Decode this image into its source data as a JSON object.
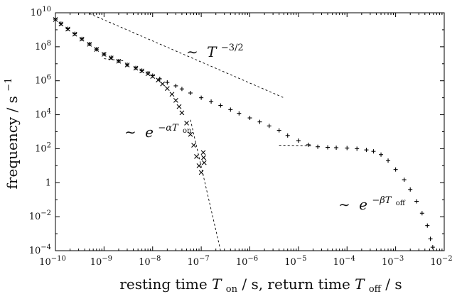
{
  "chart_data": {
    "type": "scatter",
    "xscale": "log",
    "yscale": "log",
    "xlim": [
      1e-10,
      0.01
    ],
    "ylim": [
      0.0001,
      10000000000.0
    ],
    "grid": false,
    "xlabel": "resting time T_on / s, return time T_off / s",
    "ylabel": "frequency / s^-1",
    "x_ticks": [
      {
        "value": 1e-10,
        "base": "10",
        "exp": "−10"
      },
      {
        "value": 1e-09,
        "base": "10",
        "exp": "−9"
      },
      {
        "value": 1e-08,
        "base": "10",
        "exp": "−8"
      },
      {
        "value": 1e-07,
        "base": "10",
        "exp": "−7"
      },
      {
        "value": 1e-06,
        "base": "10",
        "exp": "−6"
      },
      {
        "value": 1e-05,
        "base": "10",
        "exp": "−5"
      },
      {
        "value": 0.0001,
        "base": "10",
        "exp": "−4"
      },
      {
        "value": 0.001,
        "base": "10",
        "exp": "−3"
      },
      {
        "value": 0.01,
        "base": "10",
        "exp": "−2"
      }
    ],
    "y_ticks": [
      {
        "value": 0.0001,
        "base": "10",
        "exp": "−4"
      },
      {
        "value": 0.01,
        "base": "10",
        "exp": "−2"
      },
      {
        "value": 1,
        "base": "1",
        "exp": ""
      },
      {
        "value": 100.0,
        "base": "10",
        "exp": "2"
      },
      {
        "value": 10000.0,
        "base": "10",
        "exp": "4"
      },
      {
        "value": 1000000.0,
        "base": "10",
        "exp": "6"
      },
      {
        "value": 100000000.0,
        "base": "10",
        "exp": "8"
      },
      {
        "value": 10000000000.0,
        "base": "10",
        "exp": "10"
      }
    ],
    "series": [
      {
        "marker": "x",
        "points": [
          [
            1e-10,
            4000000000.0
          ],
          [
            1.3e-10,
            2200000000.0
          ],
          [
            1.8e-10,
            1100000000.0
          ],
          [
            2.5e-10,
            550000000.0
          ],
          [
            3.5e-10,
            280000000.0
          ],
          [
            5e-10,
            140000000.0
          ],
          [
            7e-10,
            70000000.0
          ],
          [
            1e-09,
            36000000.0
          ],
          [
            1.4e-09,
            22000000.0
          ],
          [
            2e-09,
            14000000.0
          ],
          [
            3e-09,
            8500000.0
          ],
          [
            4.5e-09,
            5500000.0
          ],
          [
            6e-09,
            3800000.0
          ],
          [
            8e-09,
            2600000.0
          ],
          [
            1e-08,
            1800000.0
          ],
          [
            1.3e-08,
            1100000.0
          ],
          [
            1.6e-08,
            650000.0
          ],
          [
            2e-08,
            350000.0
          ],
          [
            2.5e-08,
            160000.0
          ],
          [
            3e-08,
            70000.0
          ],
          [
            3.5e-08,
            30000.0
          ],
          [
            4e-08,
            13000.0
          ],
          [
            5e-08,
            3200.0
          ],
          [
            6e-08,
            700.0
          ],
          [
            7e-08,
            160.0
          ],
          [
            8e-08,
            35.0
          ],
          [
            9e-08,
            10.0
          ],
          [
            1e-07,
            4.0
          ],
          [
            1.1e-07,
            60.0
          ],
          [
            1.12e-07,
            30.0
          ],
          [
            1.15e-07,
            15.0
          ]
        ]
      },
      {
        "marker": "+",
        "points": [
          [
            1e-10,
            4200000000.0
          ],
          [
            1.3e-10,
            2300000000.0
          ],
          [
            1.8e-10,
            1150000000.0
          ],
          [
            2.5e-10,
            580000000.0
          ],
          [
            3.5e-10,
            290000000.0
          ],
          [
            5e-10,
            145000000.0
          ],
          [
            7e-10,
            72000000.0
          ],
          [
            1e-09,
            37000000.0
          ],
          [
            1.4e-09,
            23000000.0
          ],
          [
            2e-09,
            14500000.0
          ],
          [
            3e-09,
            8800000.0
          ],
          [
            4.5e-09,
            5700000.0
          ],
          [
            6e-09,
            4000000.0
          ],
          [
            8e-09,
            2800000.0
          ],
          [
            1e-08,
            2000000.0
          ],
          [
            1.4e-08,
            1300000.0
          ],
          [
            2e-08,
            800000.0
          ],
          [
            3e-08,
            500000.0
          ],
          [
            4e-08,
            330000.0
          ],
          [
            6e-08,
            190000.0
          ],
          [
            1e-07,
            100000.0
          ],
          [
            1.6e-07,
            60000.0
          ],
          [
            2.5e-07,
            35000.0
          ],
          [
            4e-07,
            20000.0
          ],
          [
            6e-07,
            12000.0
          ],
          [
            1e-06,
            6500.0
          ],
          [
            1.6e-06,
            3800.0
          ],
          [
            2.5e-06,
            2200.0
          ],
          [
            4e-06,
            1200.0
          ],
          [
            6e-06,
            600.0
          ],
          [
            1e-05,
            300.0
          ],
          [
            1.6e-05,
            170.0
          ],
          [
            2.5e-05,
            130.0
          ],
          [
            4e-05,
            120.0
          ],
          [
            6e-05,
            115.0
          ],
          [
            0.0001,
            110.0
          ],
          [
            0.00016,
            100.0
          ],
          [
            0.00025,
            85.0
          ],
          [
            0.00035,
            70.0
          ],
          [
            0.0005,
            45.0
          ],
          [
            0.0007,
            20.0
          ],
          [
            0.001,
            6.0
          ],
          [
            0.0015,
            1.5
          ],
          [
            0.002,
            0.4
          ],
          [
            0.0027,
            0.08
          ],
          [
            0.0035,
            0.016
          ],
          [
            0.0045,
            0.003
          ],
          [
            0.0052,
            0.0005
          ],
          [
            0.0058,
            0.00016
          ]
        ]
      }
    ],
    "guides": [
      {
        "from": [
          5e-10,
          9000000000.0
        ],
        "to": [
          5e-06,
          100000.0
        ]
      },
      {
        "from": [
          1e-09,
          20000000.0
        ],
        "to": [
          2.5e-09,
          15000000.0
        ]
      },
      {
        "from": [
          6e-08,
          5000.0
        ],
        "to": [
          2.5e-07,
          0.0001
        ]
      },
      {
        "from": [
          4e-06,
          160.0
        ],
        "to": [
          2e-05,
          150.0
        ]
      }
    ],
    "annotations": {
      "power_law": {
        "tilde": "∼",
        "base": "T",
        "exp": "−3/2"
      },
      "exp_on": {
        "tilde": "∼",
        "base": "e",
        "exp_pre": "−αT",
        "exp_sub": "on"
      },
      "exp_off": {
        "tilde": "∼",
        "base": "e",
        "exp_pre": "−βT",
        "exp_sub": "off"
      }
    },
    "axis_text": {
      "x": {
        "p1": "resting time ",
        "T1": "T",
        "sub1": "on",
        "p2": " / s, return time ",
        "T2": "T",
        "sub2": "off",
        "p3": " / s"
      },
      "y": {
        "p1": "frequency / s",
        "sup": "−1"
      }
    }
  }
}
